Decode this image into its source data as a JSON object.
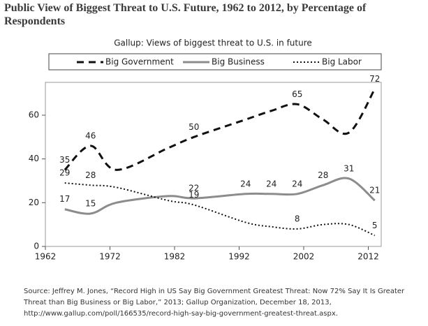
{
  "chart_data": {
    "type": "line",
    "header": "Public View of Biggest Threat to U.S. Future, 1962 to 2012, by Percentage of Respondents",
    "title": "Gallup: Views of biggest threat to U.S. in future",
    "x": [
      1965,
      1969,
      1973,
      1981,
      1985,
      1993,
      1997,
      2001,
      2005,
      2009,
      2013
    ],
    "series": [
      {
        "name": "Big Government",
        "color": "#111111",
        "dash": "10,7",
        "width": 3,
        "values": [
          35,
          46,
          35,
          45,
          50,
          58,
          62,
          65,
          58,
          52,
          72
        ],
        "value_labels": [
          "35",
          "46",
          null,
          null,
          "50",
          null,
          null,
          "65",
          null,
          null,
          "72"
        ]
      },
      {
        "name": "Big Business",
        "color": "#8c8c8c",
        "dash": "none",
        "width": 3,
        "values": [
          17,
          15,
          20,
          23,
          22,
          24,
          24,
          24,
          28,
          31,
          21
        ],
        "value_labels": [
          "17",
          "15",
          null,
          null,
          "22",
          "24",
          "24",
          "24",
          "28",
          "31",
          "21"
        ]
      },
      {
        "name": "Big Labor",
        "color": "#111111",
        "dash": "2,3",
        "width": 2,
        "values": [
          29,
          28,
          27,
          21,
          19,
          11,
          9,
          8,
          10,
          10,
          5
        ],
        "value_labels": [
          "29",
          "28",
          null,
          null,
          "19",
          null,
          null,
          "8",
          null,
          null,
          "5"
        ]
      }
    ],
    "xlim": [
      1962,
      2014
    ],
    "xticks": [
      1962,
      1972,
      1982,
      1992,
      2002,
      2012
    ],
    "ylim": [
      0,
      75
    ],
    "yticks": [
      0,
      20,
      40,
      60
    ],
    "source": "Source: Jeffrey M. Jones, “Record High in US Say Big Government Greatest Threat: Now 72% Say It Is Greater Threat than Big Business or Big Labor,” 2013; Gallup Organization, December 18, 2013, http://www.gallup.com/poll/166535/record-high-say-big-government-greatest-threat.aspx."
  }
}
